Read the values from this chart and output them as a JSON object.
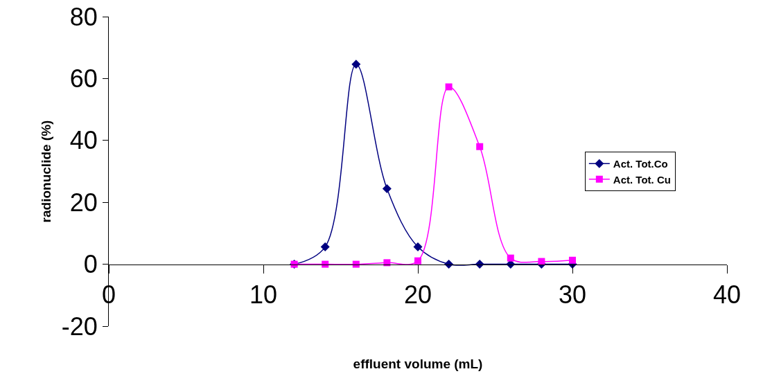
{
  "chart_data": {
    "type": "line",
    "xlabel": "effluent volume (mL)",
    "ylabel": "radionuclide (%)",
    "x": [
      12,
      14,
      16,
      18,
      20,
      22,
      24,
      26,
      28,
      30
    ],
    "series": [
      {
        "name": "Act. Tot.Co",
        "color": "#000080",
        "marker": "diamond",
        "values": [
          0,
          5.6,
          64.6,
          24.4,
          5.6,
          0,
          0,
          0,
          0,
          0
        ]
      },
      {
        "name": "Act. Tot. Cu",
        "color": "#ff00ff",
        "marker": "square",
        "values": [
          0,
          0,
          0,
          0.5,
          1.1,
          57.3,
          38,
          2,
          0.9,
          1.3
        ]
      }
    ],
    "xlim": [
      0,
      40
    ],
    "xticks": [
      0,
      10,
      20,
      30,
      40
    ],
    "ylim": [
      -20,
      80
    ],
    "yticks": [
      -20,
      0,
      20,
      40,
      60,
      80
    ],
    "grid": false,
    "legend": "right",
    "line_style": "solid"
  }
}
